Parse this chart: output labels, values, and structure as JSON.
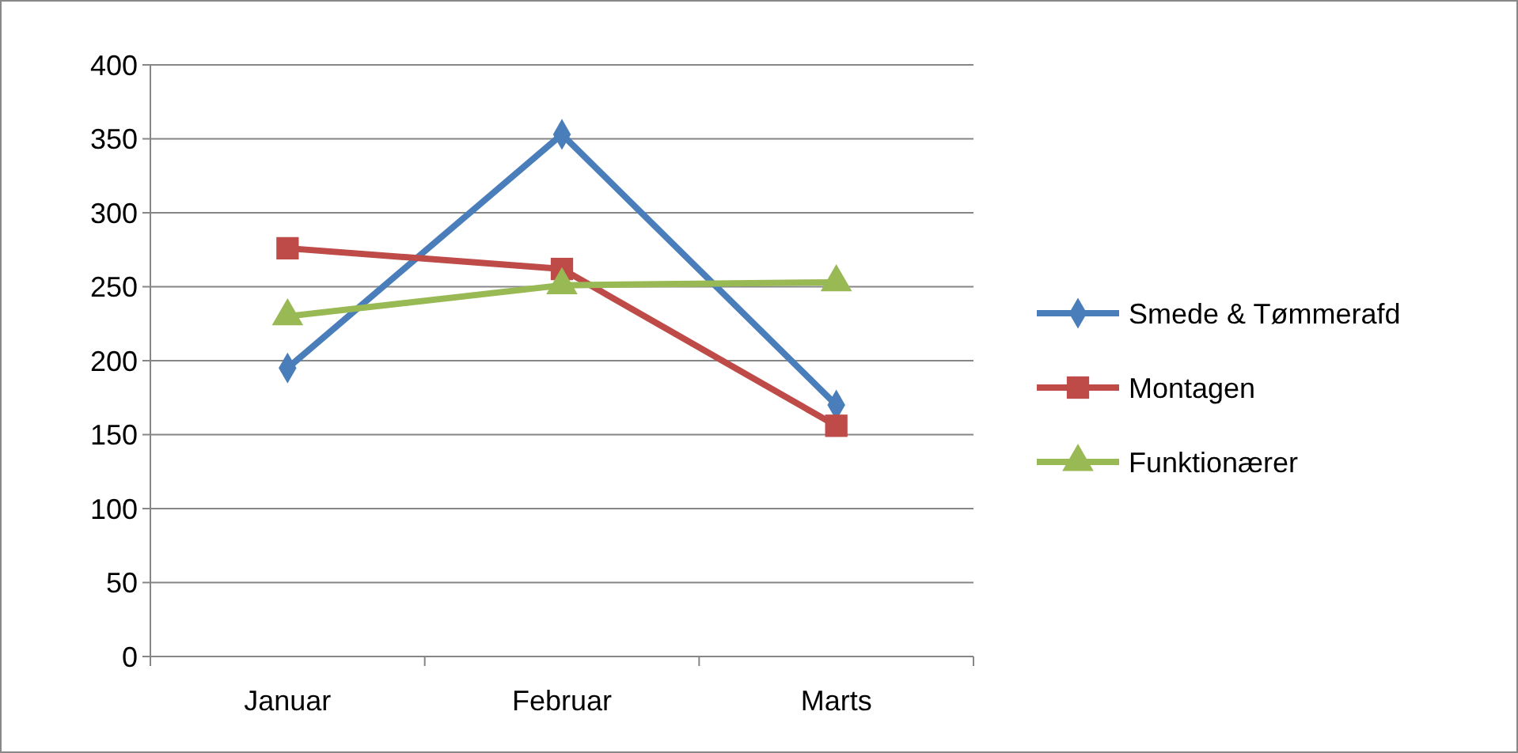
{
  "chart_data": {
    "type": "line",
    "categories": [
      "Januar",
      "Februar",
      "Marts"
    ],
    "series": [
      {
        "name": "Smede & Tømmerafd",
        "color": "#4a7ebb",
        "marker": "diamond",
        "values": [
          195,
          353,
          170
        ]
      },
      {
        "name": "Montagen",
        "color": "#be4b48",
        "marker": "square",
        "values": [
          276,
          262,
          156
        ]
      },
      {
        "name": "Funktionærer",
        "color": "#98b954",
        "marker": "triangle",
        "values": [
          230,
          251,
          253
        ]
      }
    ],
    "ylim": [
      0,
      400
    ],
    "yticks": [
      0,
      50,
      100,
      150,
      200,
      250,
      300,
      350,
      400
    ],
    "grid": "y",
    "legend": "right",
    "line_style": "solid"
  }
}
